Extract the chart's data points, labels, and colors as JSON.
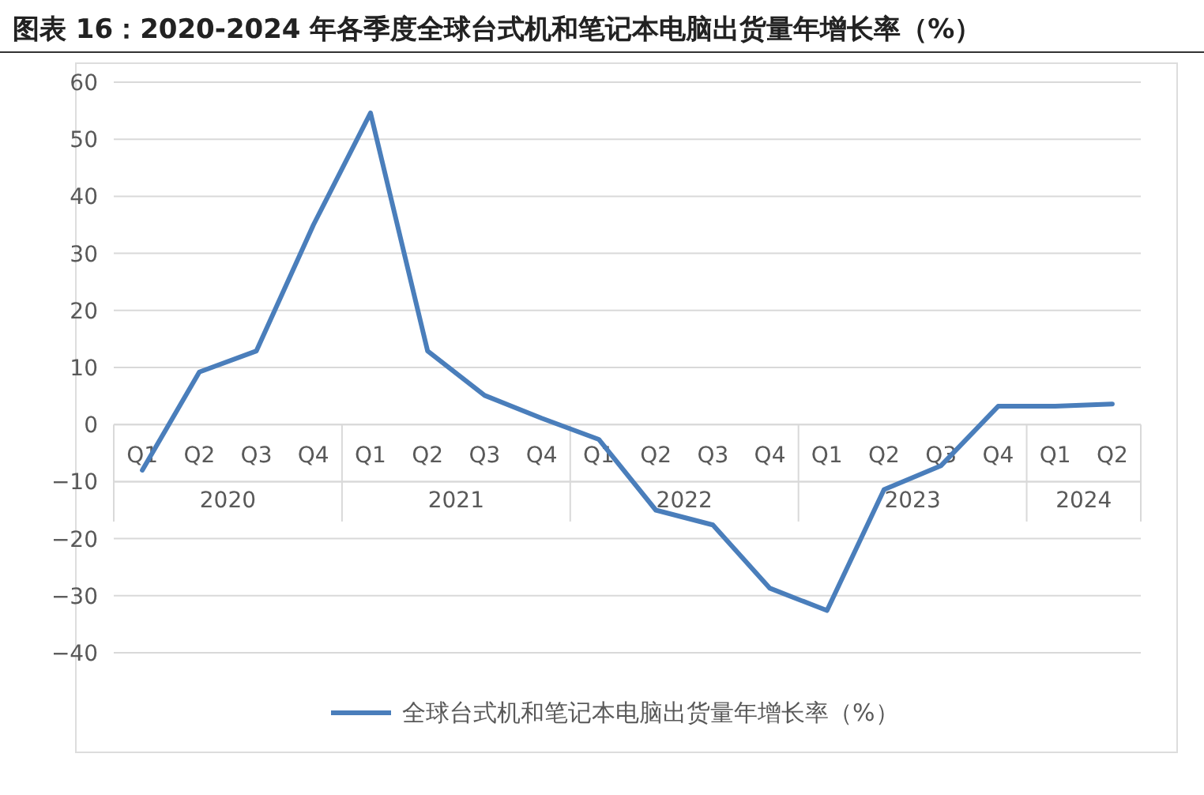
{
  "chart_data": {
    "type": "line",
    "title": "图表 16：2020-2024 年各季度全球台式机和笔记本电脑出货量年增长率（%）",
    "categories": [
      "Q1",
      "Q2",
      "Q3",
      "Q4",
      "Q1",
      "Q2",
      "Q3",
      "Q4",
      "Q1",
      "Q2",
      "Q3",
      "Q4",
      "Q1",
      "Q2",
      "Q3",
      "Q4",
      "Q1",
      "Q2"
    ],
    "annotations": [
      "2020",
      "2021",
      "2022",
      "2023",
      "2024"
    ],
    "series": [
      {
        "name": "全球台式机和笔记本电脑出货量年增长率（%）",
        "color": "#4a7ebb",
        "values": [
          -8,
          9.2,
          12.9,
          35,
          54.6,
          12.9,
          5.1,
          1.1,
          -2.6,
          -15,
          -17.6,
          -28.7,
          -32.6,
          -11.4,
          -7.2,
          3.2,
          3.2,
          3.6
        ]
      }
    ],
    "ylim": [
      -40,
      60
    ],
    "yticks": [
      -40,
      -30,
      -20,
      -10,
      0,
      10,
      20,
      30,
      40,
      50,
      60
    ],
    "grid": "y",
    "legend": "bottom",
    "marker": "none",
    "line_style": "solid"
  }
}
